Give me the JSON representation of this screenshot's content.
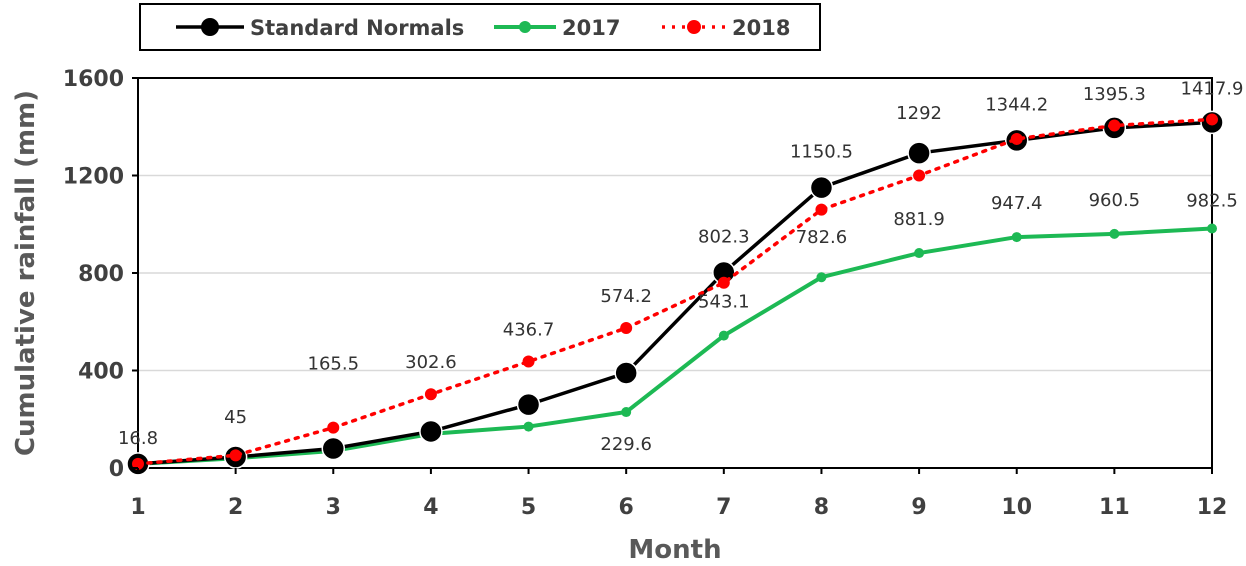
{
  "chart_data": {
    "type": "line",
    "xlabel": "Month",
    "ylabel": "Cumulative rainfall (mm)",
    "x": [
      1,
      2,
      3,
      4,
      5,
      6,
      7,
      8,
      9,
      10,
      11,
      12
    ],
    "xlim": [
      1,
      12
    ],
    "ylim": [
      0,
      1600
    ],
    "yticks": [
      0,
      400,
      800,
      1200,
      1600
    ],
    "grid": true,
    "legend_position": "top-left",
    "series": [
      {
        "name": "Standard Normals",
        "color": "#000000",
        "style": "solid",
        "values": [
          16.8,
          45,
          80,
          150,
          260,
          390,
          802.3,
          1150.5,
          1292,
          1344.2,
          1395.3,
          1417.9
        ]
      },
      {
        "name": "2017",
        "color": "#1db954",
        "style": "solid",
        "values": [
          16.8,
          40,
          70,
          140,
          170,
          229.6,
          543.1,
          782.6,
          881.9,
          947.4,
          960.5,
          982.5
        ]
      },
      {
        "name": "2018",
        "color": "#ff0000",
        "style": "dotted",
        "values": [
          16.8,
          52,
          165.5,
          302.6,
          436.7,
          574.2,
          760,
          1060,
          1200,
          1350,
          1405,
          1430
        ]
      }
    ],
    "data_labels": [
      {
        "text": "16.8",
        "x": 1,
        "y": 16.8
      },
      {
        "text": "45",
        "x": 2,
        "y": 45
      },
      {
        "text": "165.5",
        "x": 3,
        "y": 165.5
      },
      {
        "text": "302.6",
        "x": 4,
        "y": 302.6
      },
      {
        "text": "436.7",
        "x": 5,
        "y": 436.7
      },
      {
        "text": "574.2",
        "x": 6,
        "y": 574.2
      },
      {
        "text": "229.6",
        "x": 6,
        "y": 229.6
      },
      {
        "text": "802.3",
        "x": 7,
        "y": 802.3
      },
      {
        "text": "543.1",
        "x": 7,
        "y": 543.1
      },
      {
        "text": "1150.5",
        "x": 8,
        "y": 1150.5
      },
      {
        "text": "782.6",
        "x": 8,
        "y": 782.6
      },
      {
        "text": "1292",
        "x": 9,
        "y": 1292
      },
      {
        "text": "881.9",
        "x": 9,
        "y": 881.9
      },
      {
        "text": "1344.2",
        "x": 10,
        "y": 1344.2
      },
      {
        "text": "947.4",
        "x": 10,
        "y": 947.4
      },
      {
        "text": "1395.3",
        "x": 11,
        "y": 1395.3
      },
      {
        "text": "960.5",
        "x": 11,
        "y": 960.5
      },
      {
        "text": "1417.9",
        "x": 12,
        "y": 1417.9
      },
      {
        "text": "982.5",
        "x": 12,
        "y": 982.5
      }
    ]
  }
}
